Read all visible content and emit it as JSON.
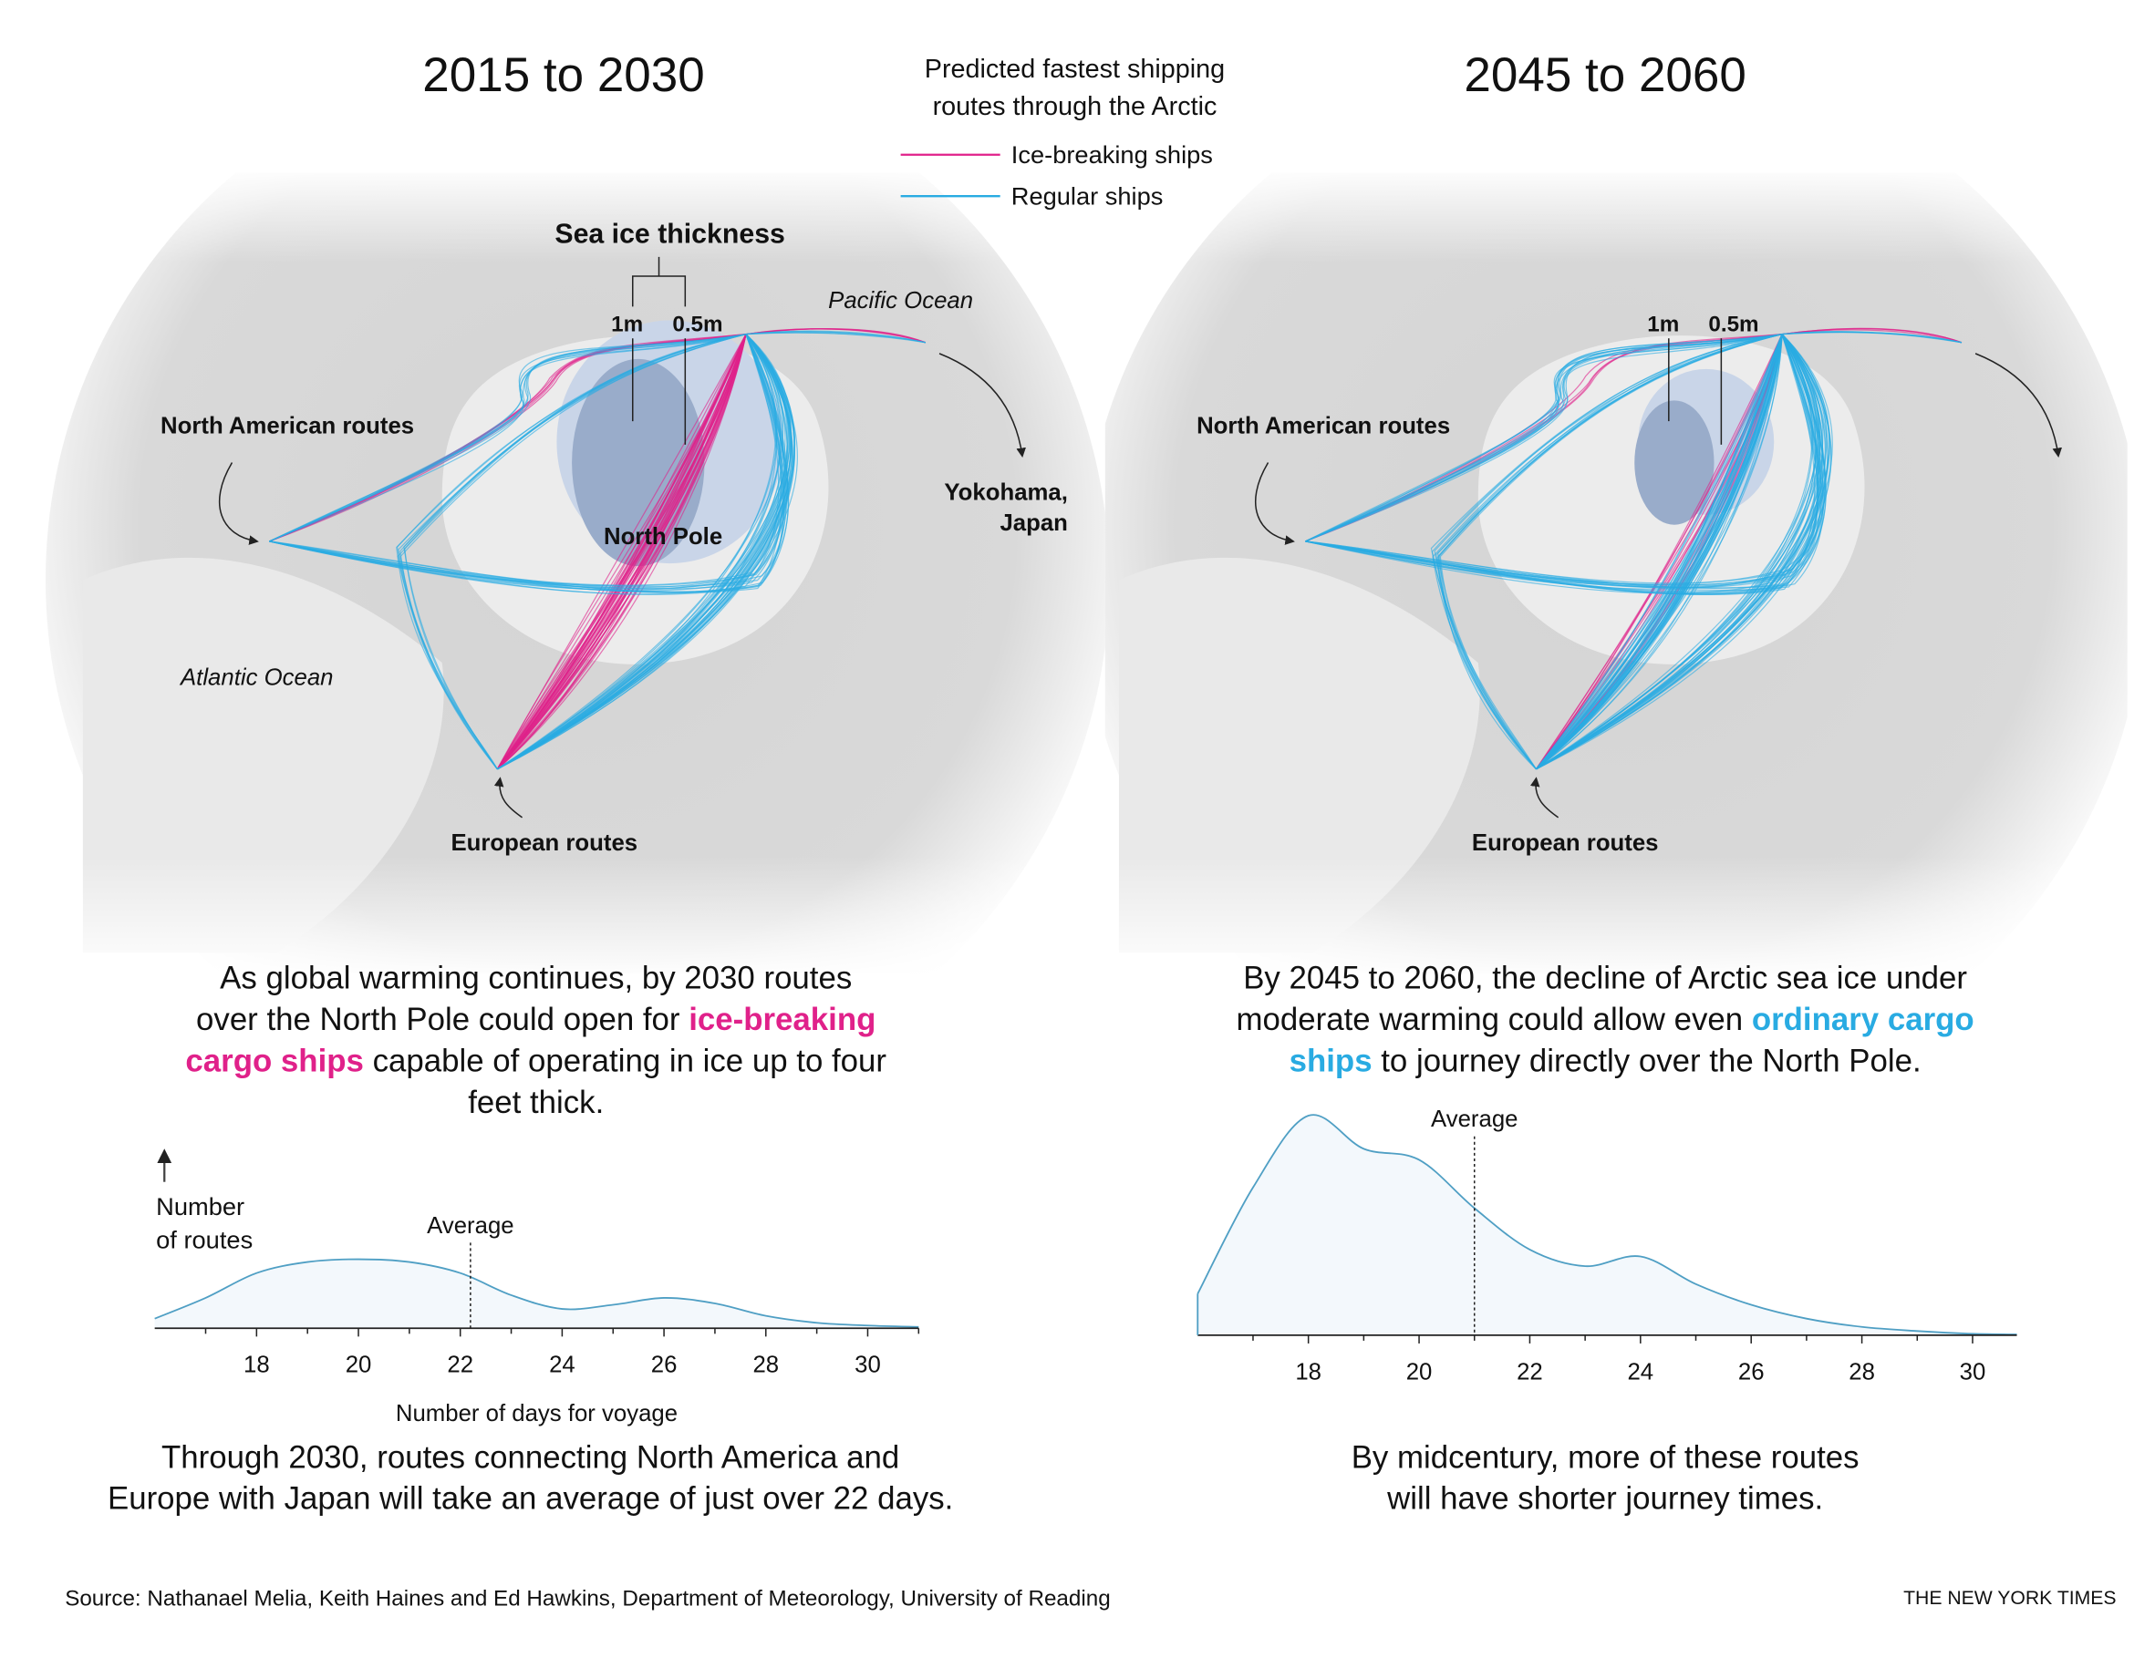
{
  "legend": {
    "title_lines": [
      "Predicted fastest shipping",
      "routes through the Arctic"
    ],
    "items": [
      {
        "label": "Ice-breaking ships",
        "color": "#e0218a"
      },
      {
        "label": "Regular ships",
        "color": "#29abe2"
      }
    ]
  },
  "panels": [
    {
      "title": "2015 to 2030",
      "map": {
        "ice_title": "Sea ice thickness",
        "ice_thick": "1m",
        "ice_thin": "0.5m",
        "pacific": "Pacific Ocean",
        "north_america": "North American routes",
        "yokohama_lines": [
          "Yokohama,",
          "Japan"
        ],
        "north_pole": "North Pole",
        "atlantic": "Atlantic Ocean",
        "europe": "European routes"
      },
      "caption": [
        [
          {
            "text": "As global warming continues, by 2030 routes"
          }
        ],
        [
          {
            "text": "over the North Pole could open for "
          },
          {
            "text": "ice-breaking",
            "color": "#e0218a"
          }
        ],
        [
          {
            "text": "cargo ships",
            "color": "#e0218a"
          },
          {
            "text": " capable of operating in ice up to four"
          }
        ],
        [
          {
            "text": "feet thick."
          }
        ]
      ],
      "note": [
        "Through 2030, routes connecting North America and",
        "Europe with Japan will take an average of just over 22 days."
      ]
    },
    {
      "title": "2045 to 2060",
      "map": {
        "ice_thick": "1m",
        "ice_thin": "0.5m",
        "north_america": "North American routes",
        "europe": "European routes"
      },
      "caption": [
        [
          {
            "text": "By 2045 to 2060, the decline of Arctic sea ice under"
          }
        ],
        [
          {
            "text": "moderate warming could allow even "
          },
          {
            "text": "ordinary cargo",
            "color": "#29abe2"
          }
        ],
        [
          {
            "text": "ships",
            "color": "#29abe2"
          },
          {
            "text": " to journey directly over the North Pole."
          }
        ]
      ],
      "note": [
        "By midcentury, more of these routes",
        "will have shorter journey times."
      ]
    }
  ],
  "chart_data": [
    {
      "type": "area",
      "x": [
        16,
        17,
        18,
        19,
        20,
        21,
        22,
        23,
        24,
        25,
        26,
        27,
        28,
        29,
        30,
        31
      ],
      "values": [
        7,
        22,
        40,
        48,
        50,
        48,
        40,
        24,
        14,
        17,
        22,
        18,
        9,
        4,
        2,
        1
      ],
      "color": "#4f9fc4",
      "xlim": [
        16,
        31
      ],
      "xticks": [
        18,
        20,
        22,
        24,
        26,
        28,
        30
      ],
      "xminorticks": [
        17,
        19,
        21,
        23,
        25,
        27,
        29,
        31
      ],
      "ylim": [
        0,
        170
      ],
      "ylabel_lines": [
        "Number",
        "of routes"
      ],
      "xlabel": "Number of days for voyage",
      "average": 22.2,
      "average_label": "Average"
    },
    {
      "type": "area",
      "x": [
        16,
        17,
        18,
        19,
        20,
        21,
        22,
        23,
        24,
        25,
        26,
        27,
        28,
        29,
        30,
        30.8
      ],
      "values": [
        30,
        107,
        159,
        135,
        127,
        92,
        62,
        50,
        57,
        37,
        22,
        12,
        6,
        3,
        1,
        0.5
      ],
      "color": "#4f9fc4",
      "xlim": [
        16,
        30.8
      ],
      "xticks": [
        18,
        20,
        22,
        24,
        26,
        28,
        30
      ],
      "xminorticks": [
        17,
        19,
        21,
        23,
        25,
        27,
        29
      ],
      "ylim": [
        0,
        170
      ],
      "average": 21,
      "average_label": "Average"
    }
  ],
  "source": "Source: Nathanael Melia, Keith Haines and Ed Hawkins, Department of Meteorology, University of Reading",
  "credit": "THE NEW YORK TIMES"
}
